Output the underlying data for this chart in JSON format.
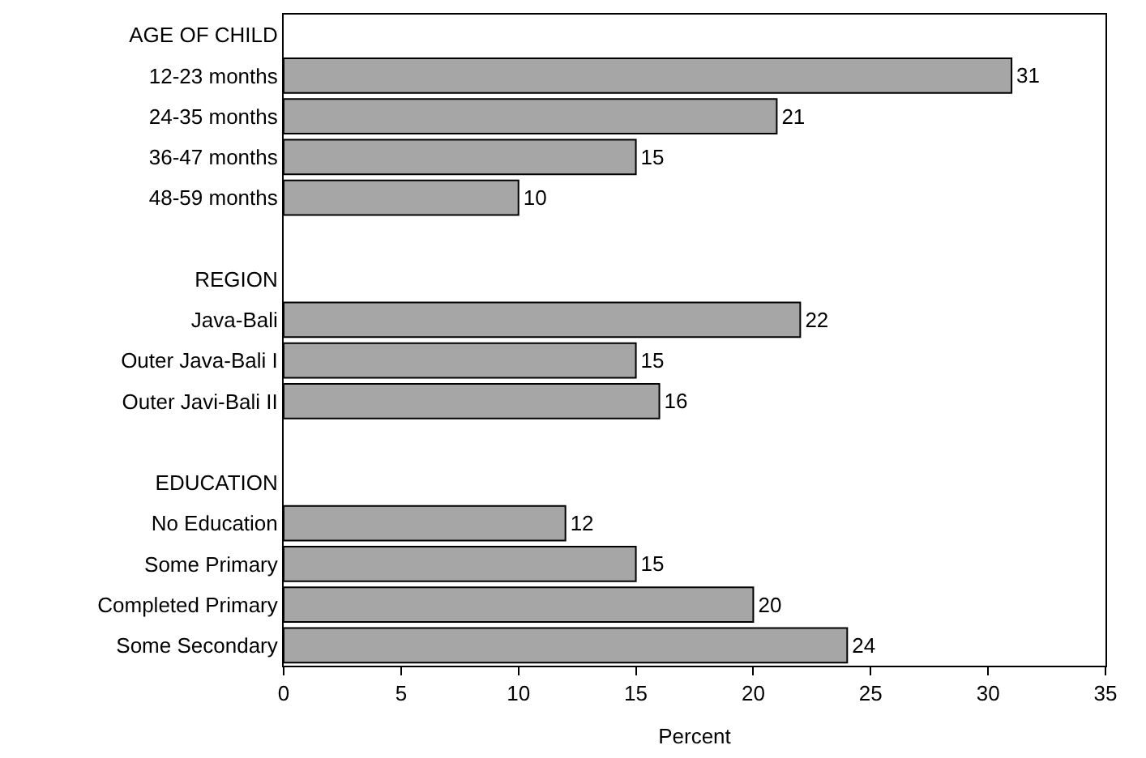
{
  "chart_data": {
    "type": "bar",
    "orientation": "horizontal",
    "xlabel": "Percent",
    "categories": [
      "AGE OF CHILD",
      "12-23 months",
      "24-35 months",
      "36-47 months",
      "48-59 months",
      null,
      "REGION",
      "Java-Bali",
      "Outer Java-Bali I",
      "Outer Javi-Bali II",
      null,
      "EDUCATION",
      "No Education",
      "Some Primary",
      "Completed Primary",
      "Some Secondary"
    ],
    "values": [
      null,
      31,
      21,
      15,
      10,
      null,
      null,
      22,
      15,
      16,
      null,
      null,
      12,
      15,
      20,
      24
    ],
    "color": "#a6a6a6",
    "xlim": [
      0,
      35
    ],
    "xticks": [
      0,
      5,
      10,
      15,
      20,
      25,
      30,
      35
    ],
    "data_labels": true
  }
}
